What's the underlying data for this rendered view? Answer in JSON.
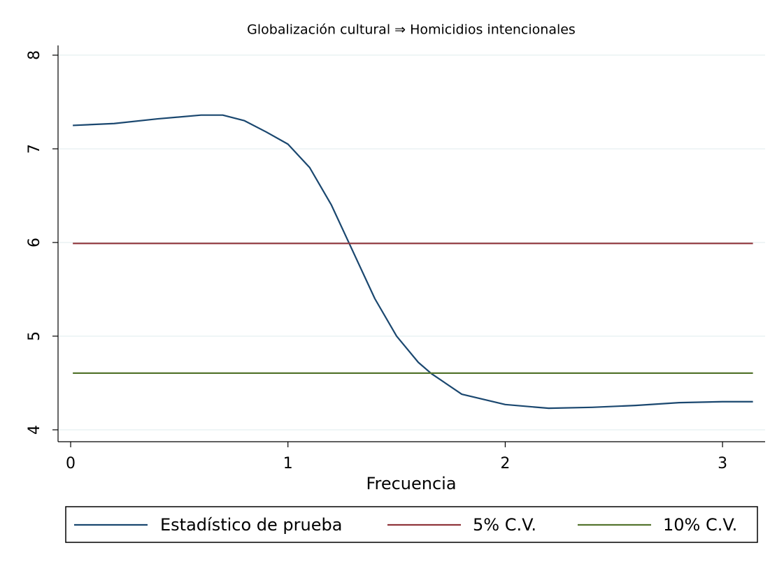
{
  "chart_data": {
    "type": "line",
    "title": "Globalización cultural ⇒ Homicidios intencionales",
    "x_label": "Frecuencia",
    "series": [
      {
        "name": "Estadístico de prueba",
        "color": "#1a476f",
        "x": [
          0.01,
          0.2,
          0.4,
          0.6,
          0.7,
          0.8,
          0.9,
          1.0,
          1.1,
          1.2,
          1.28,
          1.4,
          1.5,
          1.6,
          1.66,
          1.8,
          2.0,
          2.2,
          2.4,
          2.6,
          2.8,
          3.0,
          3.14
        ],
        "values": [
          7.25,
          7.27,
          7.32,
          7.36,
          7.36,
          7.3,
          7.18,
          7.05,
          6.8,
          6.4,
          6.0,
          5.4,
          5.0,
          4.72,
          4.6,
          4.38,
          4.27,
          4.23,
          4.24,
          4.26,
          4.29,
          4.3,
          4.3
        ]
      },
      {
        "name": "5% C.V.",
        "color": "#90353b",
        "x": [
          0.01,
          3.14
        ],
        "values": [
          5.99,
          5.99
        ]
      },
      {
        "name": "10% C.V.",
        "color": "#55752f",
        "x": [
          0.01,
          3.14
        ],
        "values": [
          4.605,
          4.605
        ]
      }
    ],
    "xlim": [
      -0.058,
      3.196
    ],
    "xticks": [
      0,
      1,
      2,
      3
    ],
    "ylim": [
      3.873,
      8.104
    ],
    "yticks": [
      4,
      5,
      6,
      7,
      8
    ],
    "grid": true,
    "legend": "bottom"
  }
}
